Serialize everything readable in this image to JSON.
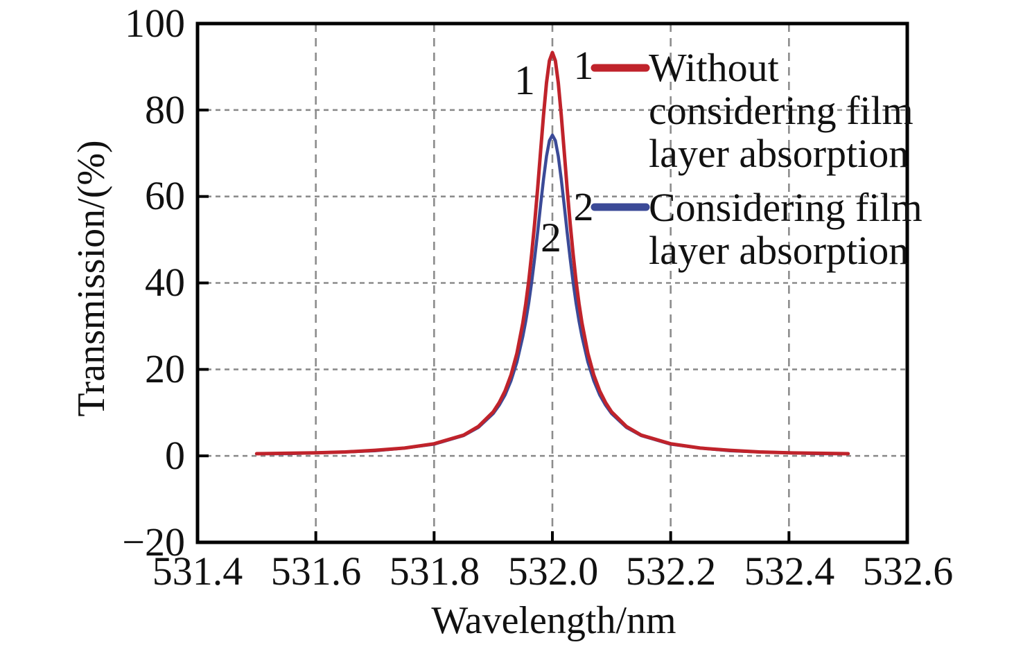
{
  "figure": {
    "background": "#ffffff",
    "text_color": "#111111",
    "axis_color": "#000000",
    "grid_color": "#8c8c8c"
  },
  "axes": {
    "x_label": "Wavelength/nm",
    "y_label": "Transmission/(%)",
    "x_tick_labels": [
      "531.4",
      "531.6",
      "531.8",
      "532.0",
      "532.2",
      "532.4",
      "532.6"
    ],
    "y_tick_labels": [
      "100",
      "80",
      "60",
      "40",
      "20",
      "0",
      "−20"
    ]
  },
  "annotations": {
    "curve1_marker": "1",
    "curve2_marker": "2"
  },
  "legend": {
    "items": [
      {
        "key": "1",
        "color": "#c0232b",
        "lines": [
          "Without",
          "considering film",
          "layer absorption"
        ]
      },
      {
        "key": "2",
        "color": "#3b4a97",
        "lines": [
          "Considering film",
          "layer absorption"
        ]
      }
    ]
  },
  "chart_data": {
    "type": "line",
    "title": "",
    "xlabel": "Wavelength/nm",
    "ylabel": "Transmission/(%)",
    "xlim": [
      531.4,
      532.6
    ],
    "ylim": [
      -20,
      100
    ],
    "xticks": [
      531.4,
      531.6,
      531.8,
      532.0,
      532.2,
      532.4,
      532.6
    ],
    "yticks": [
      100,
      80,
      60,
      40,
      20,
      0,
      -20
    ],
    "grid": {
      "x_values": [
        531.6,
        531.8,
        532.0,
        532.2,
        532.4
      ],
      "y_values": [
        80,
        60,
        40,
        20,
        0
      ],
      "style": "dashed",
      "color": "#8c8c8c"
    },
    "legend_position": "upper right",
    "x": [
      531.5,
      531.55,
      531.6,
      531.65,
      531.7,
      531.75,
      531.8,
      531.85,
      531.875,
      531.9,
      531.91,
      531.92,
      531.93,
      531.94,
      531.95,
      531.955,
      531.96,
      531.965,
      531.97,
      531.975,
      531.98,
      531.985,
      531.99,
      531.995,
      532.0,
      532.005,
      532.01,
      532.015,
      532.02,
      532.025,
      532.03,
      532.035,
      532.04,
      532.045,
      532.05,
      532.06,
      532.07,
      532.08,
      532.09,
      532.1,
      532.125,
      532.15,
      532.2,
      532.25,
      532.3,
      532.35,
      532.4,
      532.45,
      532.5
    ],
    "series": [
      {
        "name": "Without considering film layer absorption",
        "color": "#c0232b",
        "line_width": 5,
        "peak_wavelength_nm": 532.0,
        "peak_transmission_pct": 93.3,
        "values": [
          0.5,
          0.6,
          0.7,
          0.9,
          1.3,
          1.8,
          2.8,
          4.8,
          6.8,
          10.2,
          12.3,
          15.0,
          18.7,
          23.7,
          30.7,
          35.2,
          40.5,
          46.7,
          53.8,
          61.8,
          70.3,
          78.8,
          86.3,
          91.4,
          93.3,
          91.4,
          86.3,
          78.8,
          70.3,
          61.8,
          53.8,
          46.7,
          40.5,
          35.2,
          30.7,
          23.7,
          18.7,
          15.0,
          12.3,
          10.2,
          6.8,
          4.8,
          2.8,
          1.8,
          1.3,
          0.9,
          0.7,
          0.6,
          0.5
        ]
      },
      {
        "name": "Considering film layer absorption",
        "color": "#3b4a97",
        "line_width": 4.5,
        "peak_wavelength_nm": 532.0,
        "peak_transmission_pct": 74.2,
        "values": [
          0.5,
          0.5,
          0.7,
          0.9,
          1.2,
          1.8,
          2.7,
          4.7,
          6.6,
          9.8,
          11.7,
          14.1,
          17.4,
          21.7,
          27.6,
          31.2,
          35.4,
          40.2,
          45.7,
          51.7,
          57.9,
          64.0,
          69.3,
          72.9,
          74.2,
          72.9,
          69.3,
          64.0,
          57.9,
          51.7,
          45.7,
          40.2,
          35.4,
          31.2,
          27.6,
          21.7,
          17.4,
          14.1,
          11.7,
          9.8,
          6.6,
          4.7,
          2.7,
          1.8,
          1.2,
          0.9,
          0.7,
          0.5,
          0.5
        ]
      }
    ]
  }
}
